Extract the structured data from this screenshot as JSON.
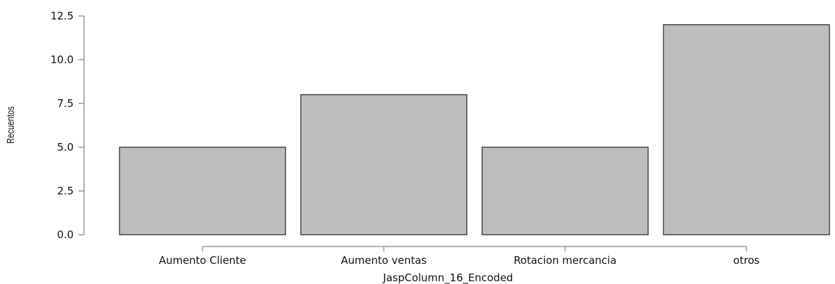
{
  "chart_data": {
    "type": "bar",
    "categories": [
      "Aumento Cliente",
      "Aumento ventas",
      "Rotacion mercancia",
      "otros"
    ],
    "values": [
      5,
      8,
      5,
      12
    ],
    "xlabel": "JaspColumn_16_Encoded",
    "ylabel": "Recuentos",
    "ylim": [
      0,
      12.5
    ],
    "yticks": [
      "0.0",
      "2.5",
      "5.0",
      "7.5",
      "10.0",
      "12.5"
    ],
    "bar_color": "#bdbdbd",
    "bar_edge_color": "#222222",
    "axis_color": "#999999",
    "grid": false,
    "legend": "none"
  }
}
